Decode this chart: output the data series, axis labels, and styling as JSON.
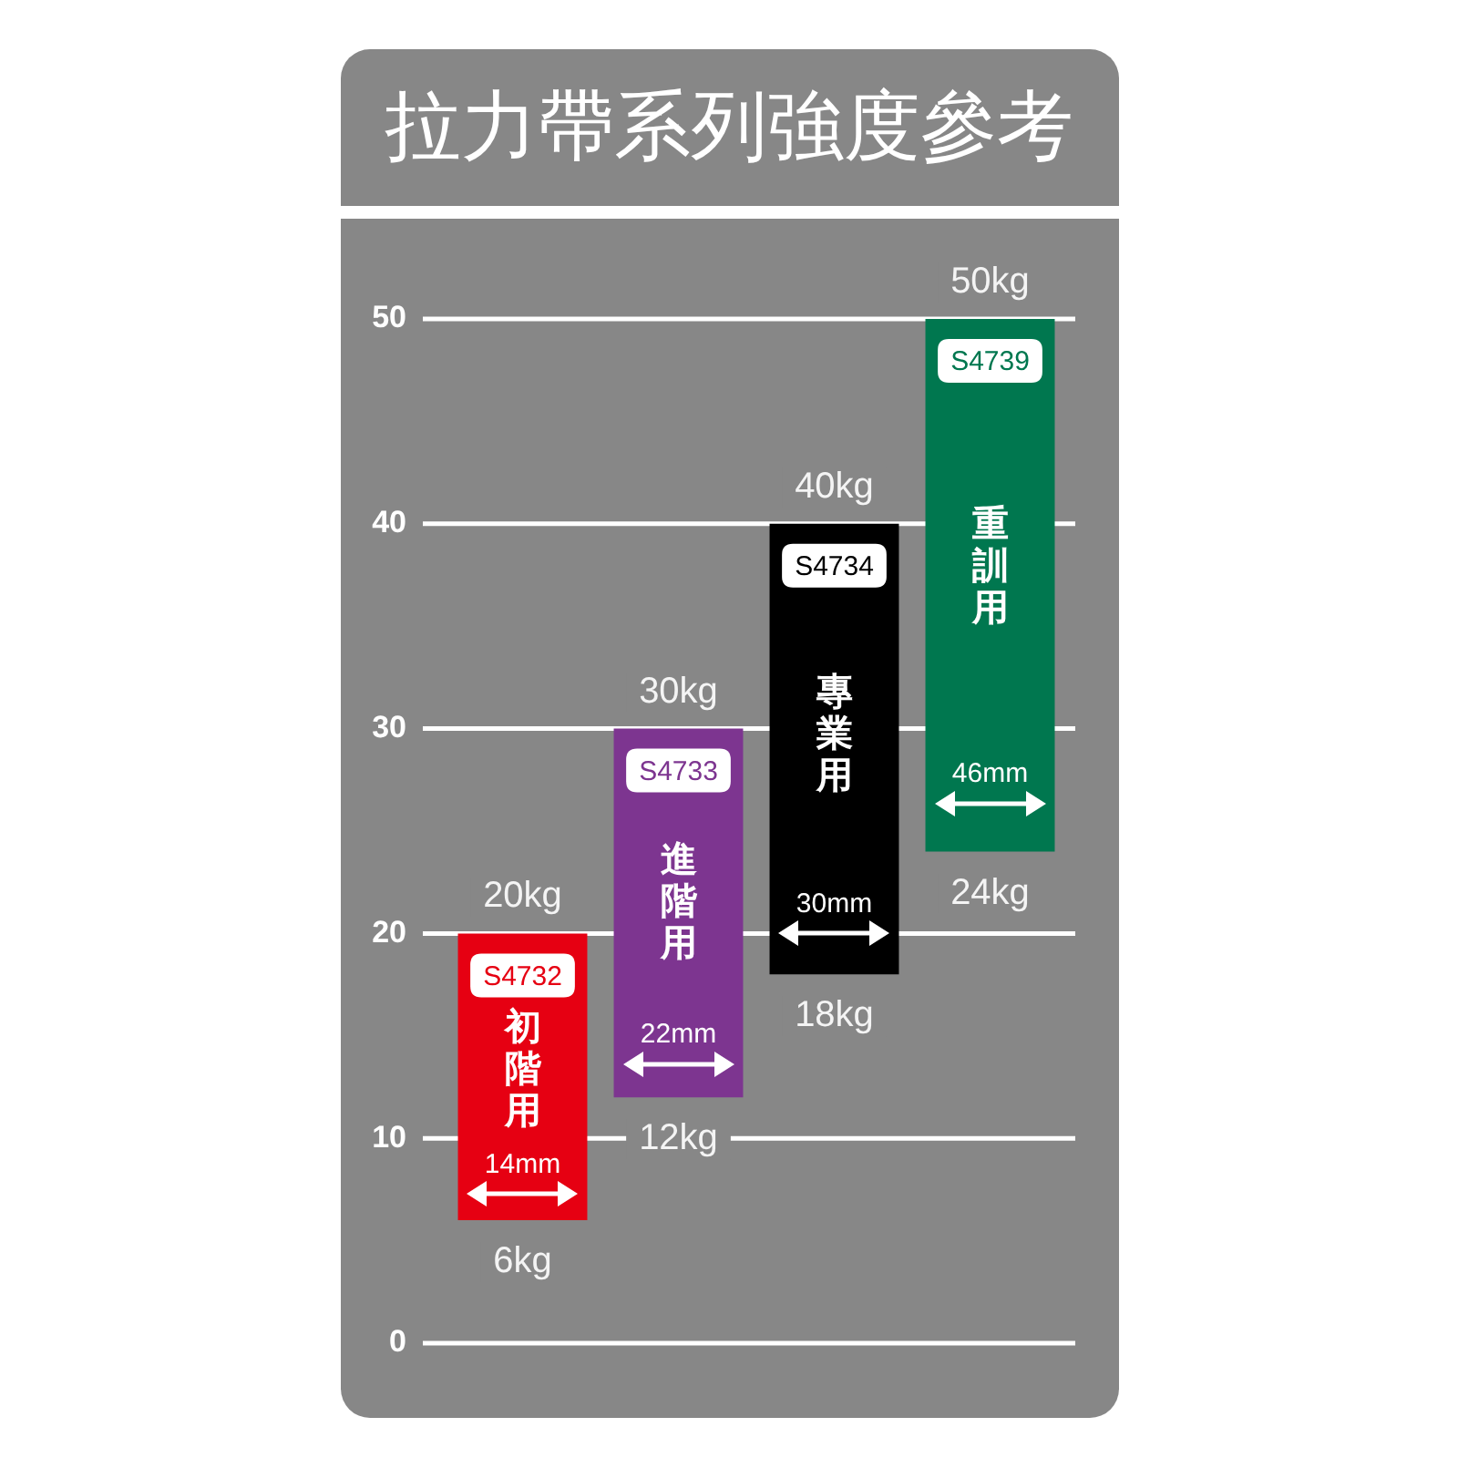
{
  "chart_data": {
    "type": "bar",
    "title": "拉力帶系列強度參考",
    "categories": [
      "初階用",
      "進階用",
      "專業用",
      "重訓用"
    ],
    "base": [
      6,
      12,
      18,
      24
    ],
    "values": [
      14,
      18,
      22,
      26
    ],
    "colors": [
      "#e60012",
      "#7d3590",
      "#000000",
      "#00774f"
    ],
    "ylim": [
      0,
      50
    ],
    "yticks": [
      0,
      10,
      20,
      30,
      40,
      50
    ],
    "grid": "y",
    "legend": false,
    "annotations": [
      {
        "text": "20kg",
        "x": "初階用",
        "y": 20
      },
      {
        "text": "6kg",
        "x": "初階用",
        "y": 6
      },
      {
        "text": "30kg",
        "x": "進階用",
        "y": 30
      },
      {
        "text": "12kg",
        "x": "進階用",
        "y": 12
      },
      {
        "text": "40kg",
        "x": "專業用",
        "y": 40
      },
      {
        "text": "18kg",
        "x": "專業用",
        "y": 18
      },
      {
        "text": "50kg",
        "x": "重訓用",
        "y": 50
      },
      {
        "text": "24kg",
        "x": "重訓用",
        "y": 24
      },
      "S4732",
      "14mm",
      "S4733",
      "22mm",
      "S4734",
      "30mm",
      "S4739",
      "46mm"
    ]
  }
}
